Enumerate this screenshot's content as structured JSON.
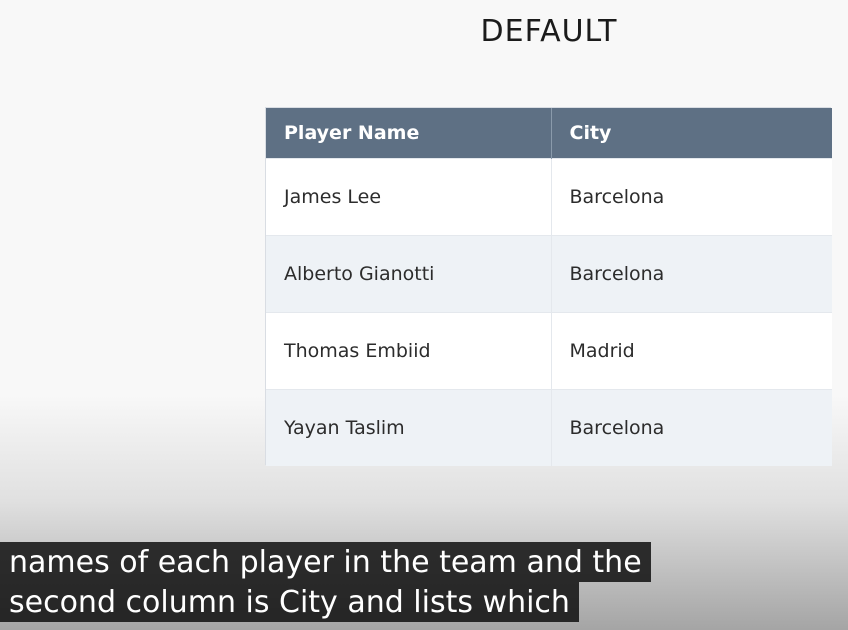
{
  "title": "DEFAULT",
  "table": {
    "headers": [
      "Player Name",
      "City"
    ],
    "rows": [
      [
        "James Lee",
        "Barcelona"
      ],
      [
        "Alberto Gianotti",
        "Barcelona"
      ],
      [
        "Thomas Embiid",
        "Madrid"
      ],
      [
        "Yayan Taslim",
        "Barcelona"
      ]
    ]
  },
  "captions": [
    "names of each player in the team and the",
    "second column is City and lists which"
  ],
  "colors": {
    "header_bg": "#5e7084",
    "stripe_bg": "#eef2f6",
    "caption_bg": "#080808"
  }
}
